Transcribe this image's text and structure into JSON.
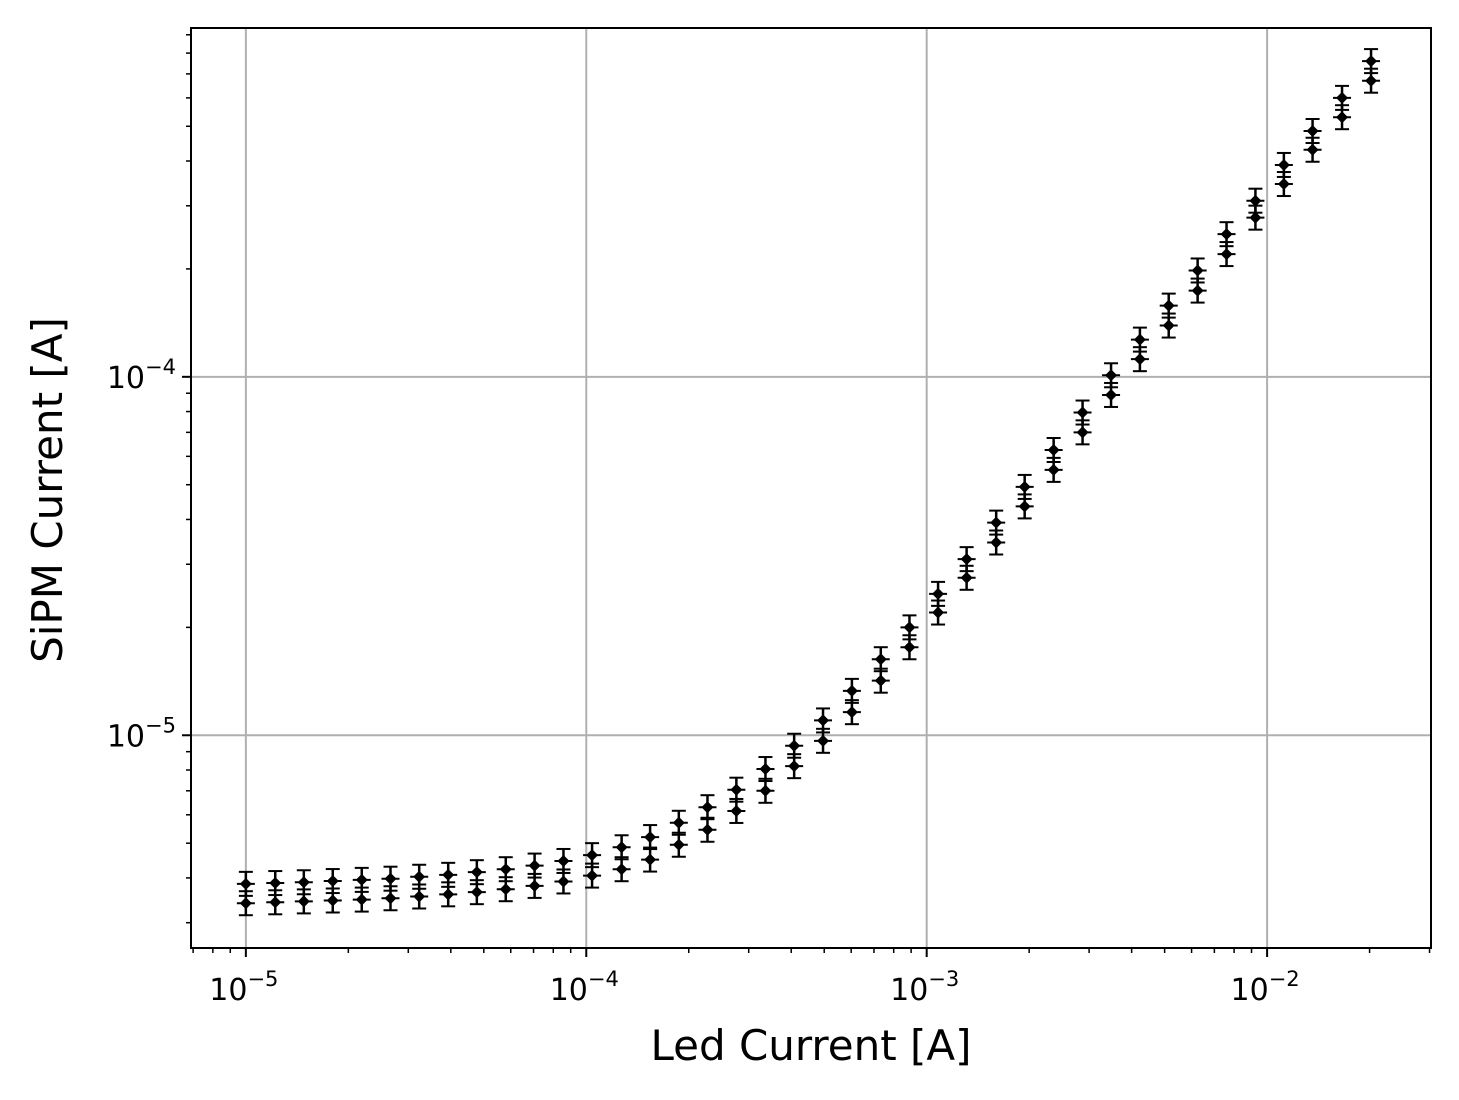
{
  "chart_data": {
    "type": "scatter",
    "xlabel": "Led Current [A]",
    "ylabel": "SiPM Current [A]",
    "xscale": "log",
    "yscale": "log",
    "xlim": [
      6.9e-06,
      0.0303
    ],
    "ylim": [
      2.55e-06,
      0.00094
    ],
    "grid": true,
    "x_ticks": [
      {
        "base": "10",
        "exp": "−5"
      },
      {
        "base": "10",
        "exp": "−4"
      },
      {
        "base": "10",
        "exp": "−3"
      },
      {
        "base": "10",
        "exp": "−2"
      }
    ],
    "y_ticks": [
      {
        "base": "10",
        "exp": "−5"
      },
      {
        "base": "10",
        "exp": "−4"
      }
    ],
    "marker_color": "#000000",
    "x": [
      1e-05,
      1.22e-05,
      1.48e-05,
      1.8e-05,
      2.19e-05,
      2.66e-05,
      3.23e-05,
      3.93e-05,
      4.77e-05,
      5.8e-05,
      7.05e-05,
      8.57e-05,
      0.000104,
      0.000127,
      0.000154,
      0.000187,
      0.000227,
      0.000276,
      0.000336,
      0.000408,
      0.000496,
      0.000603,
      0.000733,
      0.00089,
      0.00108,
      0.00131,
      0.0016,
      0.00194,
      0.00236,
      0.00287,
      0.00348,
      0.00423,
      0.00514,
      0.00625,
      0.0076,
      0.00924,
      0.0112,
      0.0136,
      0.0166,
      0.0202
    ],
    "series": [
      {
        "values": [
          3.4e-06,
          3.42e-06,
          3.44e-06,
          3.46e-06,
          3.48e-06,
          3.51e-06,
          3.55e-06,
          3.6e-06,
          3.65e-06,
          3.72e-06,
          3.8e-06,
          3.91e-06,
          4.06e-06,
          4.23e-06,
          4.5e-06,
          4.95e-06,
          5.45e-06,
          6.15e-06,
          7e-06,
          8.2e-06,
          9.65e-06,
          1.16e-05,
          1.42e-05,
          1.76e-05,
          2.2e-05,
          2.75e-05,
          3.45e-05,
          4.35e-05,
          5.5e-05,
          7e-05,
          8.9e-05,
          0.000112,
          0.000139,
          0.000174,
          0.00022,
          0.000278,
          0.000345,
          0.00043,
          0.00053,
          0.00067
        ]
      },
      {
        "values": [
          3.85e-06,
          3.87e-06,
          3.89e-06,
          3.92e-06,
          3.95e-06,
          3.98e-06,
          4.03e-06,
          4.08e-06,
          4.15e-06,
          4.23e-06,
          4.33e-06,
          4.46e-06,
          4.63e-06,
          4.87e-06,
          5.2e-06,
          5.7e-06,
          6.3e-06,
          7.05e-06,
          8.05e-06,
          9.35e-06,
          1.1e-05,
          1.33e-05,
          1.63e-05,
          2e-05,
          2.48e-05,
          3.1e-05,
          3.92e-05,
          4.93e-05,
          6.25e-05,
          7.95e-05,
          0.000101,
          0.000127,
          0.000158,
          0.000198,
          0.00025,
          0.00031,
          0.00039,
          0.000485,
          0.0006,
          0.00076
        ]
      }
    ]
  }
}
